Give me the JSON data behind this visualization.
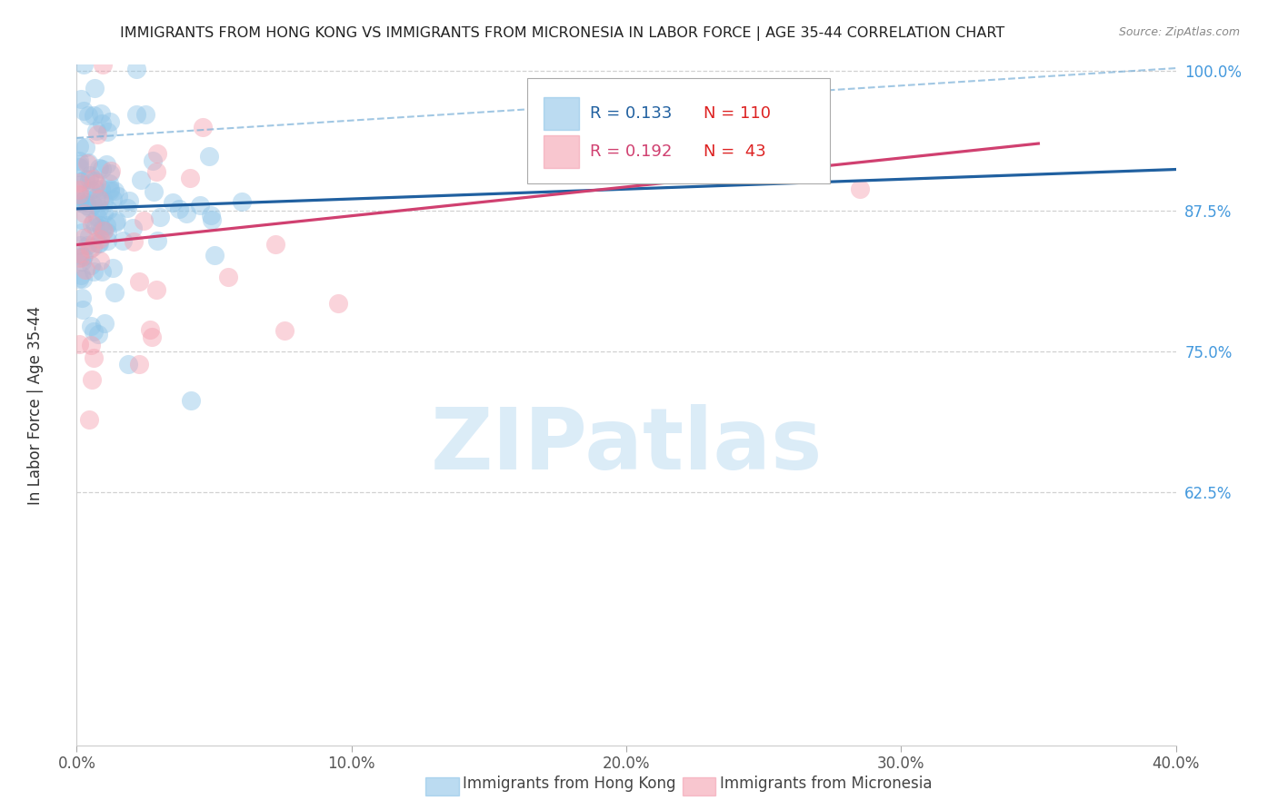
{
  "title": "IMMIGRANTS FROM HONG KONG VS IMMIGRANTS FROM MICRONESIA IN LABOR FORCE | AGE 35-44 CORRELATION CHART",
  "source": "Source: ZipAtlas.com",
  "ylabel": "In Labor Force | Age 35-44",
  "xlim": [
    0.0,
    0.4
  ],
  "ylim": [
    0.4,
    1.005
  ],
  "xtick_major_labels": [
    "0.0%",
    "10.0%",
    "20.0%",
    "30.0%",
    "40.0%"
  ],
  "xtick_major_vals": [
    0.0,
    0.1,
    0.2,
    0.3,
    0.4
  ],
  "ytick_labels": [
    "100.0%",
    "87.5%",
    "75.0%",
    "62.5%"
  ],
  "ytick_vals": [
    1.0,
    0.875,
    0.75,
    0.625
  ],
  "hk_R": 0.133,
  "hk_N": 110,
  "mic_R": 0.192,
  "mic_N": 43,
  "hk_color": "#8ec4e8",
  "mic_color": "#f4a0b0",
  "hk_line_color": "#2060a0",
  "mic_line_color": "#d04070",
  "hk_dash_color": "#7ab0d8",
  "watermark_text": "ZIPatlas",
  "watermark_color": "#cce4f5",
  "legend_hk_label": "Immigrants from Hong Kong",
  "legend_mic_label": "Immigrants from Micronesia",
  "title_fontsize": 11.5,
  "source_fontsize": 9,
  "tick_fontsize": 12,
  "legend_fontsize": 12
}
